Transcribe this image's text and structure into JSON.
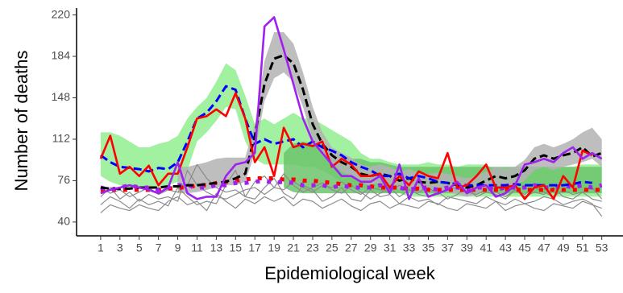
{
  "chart_data": {
    "type": "line",
    "x_label": "Epidemiological week",
    "y_label": "Number of deaths",
    "xlim": [
      -1.5,
      55.2
    ],
    "ylim": [
      28,
      226
    ],
    "xticks": [
      1,
      3,
      5,
      7,
      9,
      11,
      13,
      15,
      17,
      19,
      21,
      23,
      25,
      27,
      29,
      31,
      33,
      35,
      37,
      39,
      41,
      43,
      45,
      47,
      49,
      51,
      53
    ],
    "yticks": [
      40,
      76,
      112,
      148,
      184,
      220
    ],
    "x": [
      1,
      2,
      3,
      4,
      5,
      6,
      7,
      8,
      9,
      10,
      11,
      12,
      13,
      14,
      15,
      16,
      17,
      18,
      19,
      20,
      21,
      22,
      23,
      24,
      25,
      26,
      27,
      28,
      29,
      30,
      31,
      32,
      33,
      34,
      35,
      36,
      37,
      38,
      39,
      40,
      41,
      42,
      43,
      44,
      45,
      46,
      47,
      48,
      49,
      50,
      51,
      52,
      53
    ],
    "bands": [
      {
        "color": "#90ee90",
        "upper": [
          118,
          118,
          115,
          110,
          105,
          105,
          108,
          110,
          115,
          130,
          140,
          148,
          162,
          178,
          172,
          150,
          125,
          130,
          125,
          130,
          135,
          130,
          130,
          125,
          120,
          115,
          110,
          100,
          95,
          95,
          92,
          90,
          90,
          90,
          92,
          90,
          90,
          88,
          90,
          90,
          90,
          85,
          85,
          85,
          88,
          88,
          88,
          88,
          88,
          88,
          90,
          90,
          90
        ],
        "lower": [
          80,
          75,
          72,
          70,
          70,
          70,
          70,
          72,
          75,
          85,
          110,
          118,
          128,
          140,
          138,
          110,
          95,
          90,
          90,
          90,
          90,
          88,
          88,
          85,
          80,
          75,
          72,
          70,
          68,
          65,
          65,
          65,
          62,
          62,
          62,
          62,
          62,
          62,
          62,
          62,
          62,
          62,
          62,
          62,
          62,
          62,
          62,
          62,
          62,
          62,
          62,
          62,
          62
        ]
      },
      {
        "color": "#6cc46c",
        "upper": [
          null,
          null,
          null,
          null,
          null,
          null,
          null,
          null,
          null,
          null,
          null,
          null,
          null,
          null,
          null,
          null,
          null,
          null,
          null,
          100,
          108,
          110,
          108,
          105,
          100,
          98,
          95,
          95,
          92,
          92,
          90,
          88,
          88,
          88,
          88,
          88,
          88,
          88,
          88,
          88,
          88,
          88,
          88,
          88,
          88,
          88,
          88,
          88,
          88,
          88,
          88,
          88,
          88
        ],
        "lower": [
          null,
          null,
          null,
          null,
          null,
          null,
          null,
          null,
          null,
          null,
          null,
          null,
          null,
          null,
          null,
          null,
          null,
          null,
          null,
          70,
          66,
          65,
          65,
          65,
          65,
          65,
          65,
          65,
          65,
          65,
          65,
          65,
          65,
          65,
          65,
          65,
          65,
          65,
          65,
          65,
          65,
          65,
          65,
          65,
          65,
          65,
          65,
          65,
          65,
          65,
          65,
          65,
          65
        ]
      },
      {
        "color": "#b3b3b3",
        "upper": [
          null,
          null,
          null,
          null,
          null,
          null,
          null,
          null,
          88,
          88,
          90,
          92,
          95,
          96,
          96,
          96,
          125,
          180,
          205,
          205,
          195,
          170,
          140,
          118,
          105,
          100,
          96,
          90,
          88,
          90,
          88,
          84,
          86,
          83,
          82,
          83,
          82,
          80,
          78,
          80,
          84,
          88,
          86,
          88,
          94,
          105,
          108,
          105,
          108,
          112,
          118,
          122,
          112
        ],
        "lower": [
          null,
          null,
          null,
          null,
          null,
          null,
          null,
          null,
          65,
          65,
          66,
          68,
          70,
          72,
          72,
          75,
          100,
          145,
          165,
          170,
          162,
          140,
          112,
          98,
          90,
          84,
          80,
          74,
          72,
          74,
          72,
          68,
          70,
          67,
          66,
          67,
          66,
          64,
          62,
          64,
          68,
          72,
          70,
          72,
          76,
          85,
          88,
          85,
          88,
          90,
          92,
          95,
          88
        ]
      }
    ],
    "series": [
      {
        "color": "#8c8c8c",
        "style": "thin",
        "values": [
          55,
          62,
          58,
          52,
          60,
          55,
          58,
          54,
          70,
          62,
          55,
          58,
          56,
          72,
          85,
          62,
          60,
          70,
          78,
          65,
          60,
          72,
          68,
          58,
          62,
          70,
          60,
          58,
          68,
          62,
          64,
          56,
          62,
          58,
          60,
          55,
          62,
          60,
          58,
          56,
          62,
          58,
          55,
          60,
          56,
          58,
          62,
          60,
          55,
          58,
          60,
          56,
          45
        ]
      },
      {
        "color": "#8c8c8c",
        "style": "thin",
        "values": [
          62,
          70,
          60,
          66,
          58,
          64,
          60,
          62,
          58,
          85,
          72,
          66,
          62,
          60,
          64,
          68,
          70,
          64,
          70,
          82,
          72,
          66,
          70,
          74,
          68,
          65,
          72,
          66,
          60,
          65,
          70,
          62,
          68,
          64,
          62,
          66,
          60,
          64,
          70,
          62,
          66,
          64,
          60,
          68,
          62,
          66,
          64,
          70,
          62,
          60,
          66,
          60,
          58
        ]
      },
      {
        "color": "#8c8c8c",
        "style": "thin",
        "values": [
          48,
          55,
          52,
          50,
          55,
          52,
          50,
          58,
          62,
          55,
          58,
          50,
          65,
          58,
          52,
          60,
          56,
          62,
          58,
          62,
          54,
          60,
          58,
          52,
          56,
          60,
          54,
          50,
          56,
          58,
          52,
          56,
          54,
          52,
          58,
          56,
          52,
          50,
          56,
          54,
          52,
          58,
          50,
          54,
          56,
          52,
          50,
          56,
          54,
          52,
          58,
          55,
          52
        ]
      },
      {
        "color": "#8c8c8c",
        "style": "thin",
        "values": [
          70,
          65,
          68,
          62,
          66,
          70,
          64,
          68,
          66,
          72,
          90,
          78,
          70,
          66,
          68,
          62,
          75,
          80,
          70,
          68,
          75,
          70,
          66,
          72,
          70,
          75,
          68,
          64,
          70,
          68,
          66,
          72,
          68,
          66,
          70,
          64,
          68,
          70,
          66,
          64,
          68,
          66,
          62,
          68,
          64,
          70,
          66,
          62,
          68,
          64,
          66,
          70,
          60
        ]
      },
      {
        "color": "#ff0000",
        "style": "dotted",
        "values": [
          68,
          68,
          68,
          68,
          68,
          68,
          68,
          69,
          70,
          70,
          72,
          72,
          74,
          75,
          76,
          77,
          78,
          78,
          78,
          77,
          77,
          76,
          76,
          75,
          74,
          73,
          72,
          72,
          71,
          70,
          70,
          70,
          69,
          69,
          68,
          68,
          68,
          68,
          68,
          68,
          68,
          68,
          68,
          68,
          68,
          68,
          68,
          68,
          68,
          68,
          68,
          68,
          68
        ]
      },
      {
        "color": "#a020f0",
        "style": "dotted",
        "values": [
          70,
          68,
          70,
          72,
          70,
          70,
          68,
          70,
          72,
          72,
          70,
          70,
          72,
          72,
          74,
          74,
          75,
          76,
          74,
          75,
          74,
          72,
          72,
          72,
          70,
          72,
          70,
          70,
          70,
          72,
          70,
          70,
          68,
          70,
          70,
          68,
          70,
          70,
          68,
          70,
          70,
          68,
          70,
          70,
          70,
          72,
          70,
          70,
          72,
          70,
          72,
          70,
          72
        ]
      },
      {
        "color": "#000000",
        "style": "dashed",
        "values": [
          70,
          69,
          69,
          69,
          70,
          70,
          70,
          71,
          71,
          72,
          72,
          73,
          74,
          75,
          78,
          82,
          115,
          160,
          182,
          185,
          178,
          155,
          125,
          108,
          98,
          92,
          88,
          82,
          80,
          82,
          80,
          76,
          78,
          75,
          74,
          75,
          74,
          72,
          70,
          72,
          76,
          80,
          78,
          80,
          85,
          95,
          98,
          95,
          98,
          100,
          105,
          97,
          100
        ]
      },
      {
        "color": "#0000ff",
        "style": "dashed",
        "values": [
          98,
          92,
          88,
          87,
          86,
          84,
          87,
          86,
          92,
          110,
          130,
          135,
          145,
          158,
          155,
          130,
          108,
          112,
          108,
          110,
          112,
          105,
          110,
          105,
          102,
          98,
          92,
          88,
          85,
          80,
          80,
          82,
          78,
          80,
          78,
          75,
          74,
          73,
          72,
          72,
          72,
          72,
          72,
          73,
          72,
          72,
          72,
          72,
          72,
          73,
          75,
          74,
          null
        ]
      },
      {
        "color": "#ff0000",
        "style": "solid",
        "values": [
          95,
          115,
          82,
          88,
          80,
          89,
          72,
          82,
          82,
          105,
          130,
          132,
          138,
          132,
          152,
          130,
          92,
          105,
          80,
          122,
          105,
          108,
          106,
          110,
          88,
          95,
          90,
          80,
          80,
          82,
          70,
          80,
          72,
          84,
          80,
          78,
          100,
          70,
          72,
          80,
          90,
          70,
          70,
          72,
          60,
          70,
          72,
          60,
          80,
          70,
          102,
          98,
          null
        ]
      },
      {
        "color": "#a020f0",
        "style": "solid",
        "values": [
          65,
          68,
          70,
          72,
          70,
          68,
          65,
          70,
          92,
          65,
          60,
          62,
          62,
          80,
          90,
          92,
          100,
          210,
          218,
          190,
          160,
          130,
          110,
          100,
          90,
          80,
          80,
          75,
          75,
          80,
          65,
          90,
          60,
          78,
          62,
          65,
          68,
          75,
          65,
          70,
          72,
          62,
          65,
          72,
          90,
          92,
          95,
          92,
          100,
          105,
          95,
          100,
          95
        ]
      }
    ]
  }
}
